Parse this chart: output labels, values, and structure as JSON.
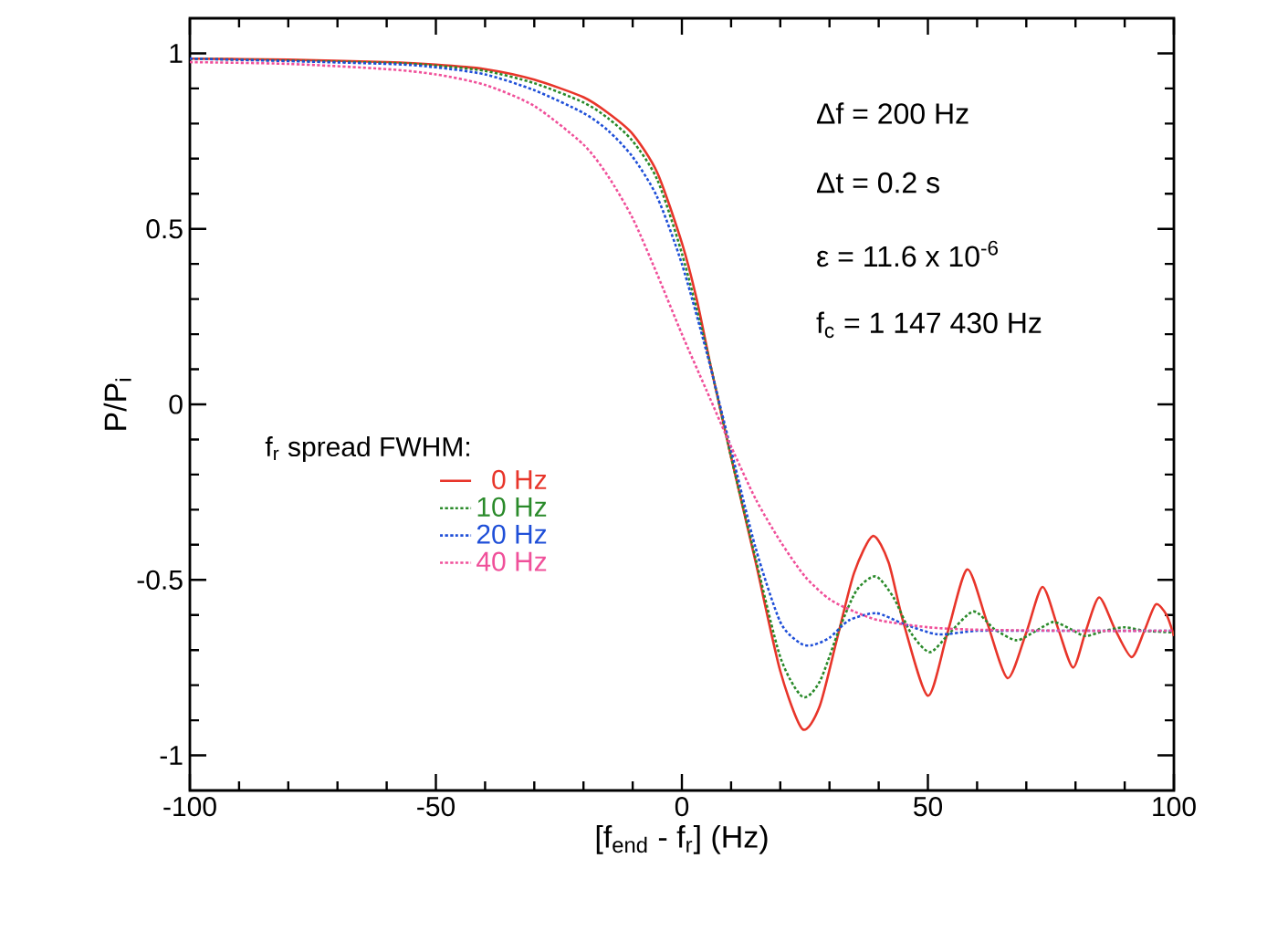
{
  "chart_data": {
    "type": "line",
    "xlabel": "[f$_{end}$ - f$_{r}$] (Hz)",
    "ylabel": "P/P$_{i}$",
    "legend_title": "f$_{r}$ spread FWHM:",
    "legend": "left",
    "xlim": [
      -100,
      100
    ],
    "ylim": [
      -1.1,
      1.1
    ],
    "xticks": [
      -100,
      -50,
      0,
      50,
      100
    ],
    "yticks": [
      -1,
      -0.5,
      0,
      0.5,
      1
    ],
    "annotations": [
      "Δf = 200 Hz",
      "Δt = 0.2 s",
      "ε = 11.6 x 10$^{-6}$",
      "f$_{c}$ = 1 147 430 Hz"
    ],
    "series": [
      {
        "name": "0 Hz",
        "color": "#e8352a",
        "line_style": "solid",
        "x": [
          -100,
          -80,
          -60,
          -50,
          -40,
          -30,
          -20,
          -15,
          -10,
          -5,
          0,
          3,
          6,
          10,
          15,
          20,
          24.5,
          28,
          31.5,
          35,
          38.8,
          42,
          45,
          50,
          54,
          58,
          62,
          66.2,
          70,
          73.3,
          76.5,
          79.5,
          82,
          84.8,
          88,
          91.4,
          94,
          96.3,
          98.5,
          100
        ],
        "values": [
          0.985,
          0.982,
          0.975,
          0.968,
          0.955,
          0.925,
          0.875,
          0.83,
          0.77,
          0.66,
          0.46,
          0.3,
          0.1,
          -0.15,
          -0.45,
          -0.76,
          -0.925,
          -0.86,
          -0.67,
          -0.48,
          -0.375,
          -0.45,
          -0.62,
          -0.83,
          -0.65,
          -0.47,
          -0.62,
          -0.78,
          -0.65,
          -0.52,
          -0.64,
          -0.75,
          -0.65,
          -0.55,
          -0.64,
          -0.72,
          -0.645,
          -0.57,
          -0.6,
          -0.66
        ]
      },
      {
        "name": "10 Hz",
        "color": "#2a8a2a",
        "line_style": "dotted",
        "x": [
          -100,
          -60,
          -50,
          -40,
          -30,
          -20,
          -15,
          -10,
          -5,
          0,
          5,
          10,
          15,
          20,
          24.5,
          28,
          32,
          35.5,
          39.4,
          43,
          46.5,
          50.4,
          54.5,
          59.3,
          63.5,
          68,
          72,
          75.5,
          79,
          82,
          86,
          90,
          94,
          100
        ],
        "values": [
          0.985,
          0.973,
          0.965,
          0.95,
          0.915,
          0.86,
          0.815,
          0.75,
          0.64,
          0.43,
          0.16,
          -0.15,
          -0.44,
          -0.72,
          -0.833,
          -0.79,
          -0.64,
          -0.53,
          -0.49,
          -0.55,
          -0.65,
          -0.706,
          -0.65,
          -0.59,
          -0.64,
          -0.672,
          -0.645,
          -0.62,
          -0.64,
          -0.66,
          -0.645,
          -0.635,
          -0.645,
          -0.65
        ]
      },
      {
        "name": "20 Hz",
        "color": "#1f4fd8",
        "line_style": "dotted",
        "x": [
          -100,
          -60,
          -50,
          -40,
          -30,
          -20,
          -15,
          -10,
          -5,
          0,
          5,
          10,
          15,
          20,
          24,
          26.5,
          30,
          34,
          39.5,
          45,
          52,
          60,
          70,
          100
        ],
        "values": [
          0.985,
          0.97,
          0.96,
          0.94,
          0.895,
          0.83,
          0.78,
          0.705,
          0.59,
          0.4,
          0.15,
          -0.13,
          -0.41,
          -0.62,
          -0.68,
          -0.686,
          -0.665,
          -0.615,
          -0.595,
          -0.625,
          -0.655,
          -0.645,
          -0.645,
          -0.645
        ]
      },
      {
        "name": "40 Hz",
        "color": "#f0509a",
        "line_style": "dotted",
        "x": [
          -100,
          -80,
          -60,
          -50,
          -40,
          -30,
          -20,
          -15,
          -10,
          -5,
          0,
          5,
          10,
          15,
          20,
          25,
          30,
          35,
          40,
          50,
          60,
          80,
          100
        ],
        "values": [
          0.975,
          0.97,
          0.955,
          0.94,
          0.91,
          0.85,
          0.74,
          0.65,
          0.53,
          0.37,
          0.2,
          0.04,
          -0.12,
          -0.27,
          -0.39,
          -0.49,
          -0.555,
          -0.59,
          -0.615,
          -0.635,
          -0.642,
          -0.645,
          -0.645
        ]
      }
    ]
  }
}
